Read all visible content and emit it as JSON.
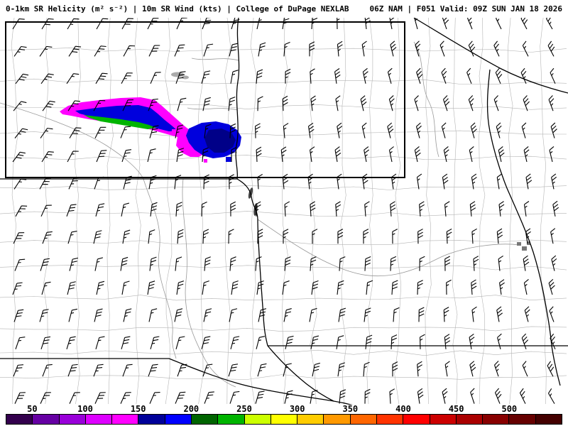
{
  "header": {
    "left_title": "0-1km SR Helicity (m² s⁻²) | 10m SR Wind (kts) | College of DuPage NEXLAB",
    "right_title": "06Z NAM | F051 Valid: 09Z SUN JAN 18 2026"
  },
  "map": {
    "background": "#ffffff",
    "county_line_color": "#b4b4b4",
    "river_line_color": "#999999",
    "state_border_color": "#000000",
    "highlight_box_color": "#000000",
    "wind_barb_color": "#000000"
  },
  "helicity_overlay": {
    "colors": {
      "magenta": "#ff00ff",
      "blue": "#0000dd",
      "dark_blue": "#000088",
      "green": "#00b400"
    }
  },
  "colorbar": {
    "unit": "m² s⁻²",
    "min_value": 25,
    "max_value": 550,
    "segment_step": 25,
    "tick_values": [
      50,
      100,
      150,
      200,
      250,
      300,
      350,
      400,
      450,
      500
    ],
    "tick_labels": [
      "50",
      "100",
      "150",
      "200",
      "250",
      "300",
      "350",
      "400",
      "450",
      "500"
    ],
    "colors": [
      "#33004d",
      "#6600a3",
      "#9900d9",
      "#dd00ff",
      "#ff00ff",
      "#000099",
      "#0000ff",
      "#006400",
      "#00b400",
      "#ccff00",
      "#ffff00",
      "#ffcc00",
      "#ff9900",
      "#ff6600",
      "#ff3300",
      "#ff0000",
      "#cc0000",
      "#aa0000",
      "#880000",
      "#660000",
      "#440000"
    ]
  }
}
